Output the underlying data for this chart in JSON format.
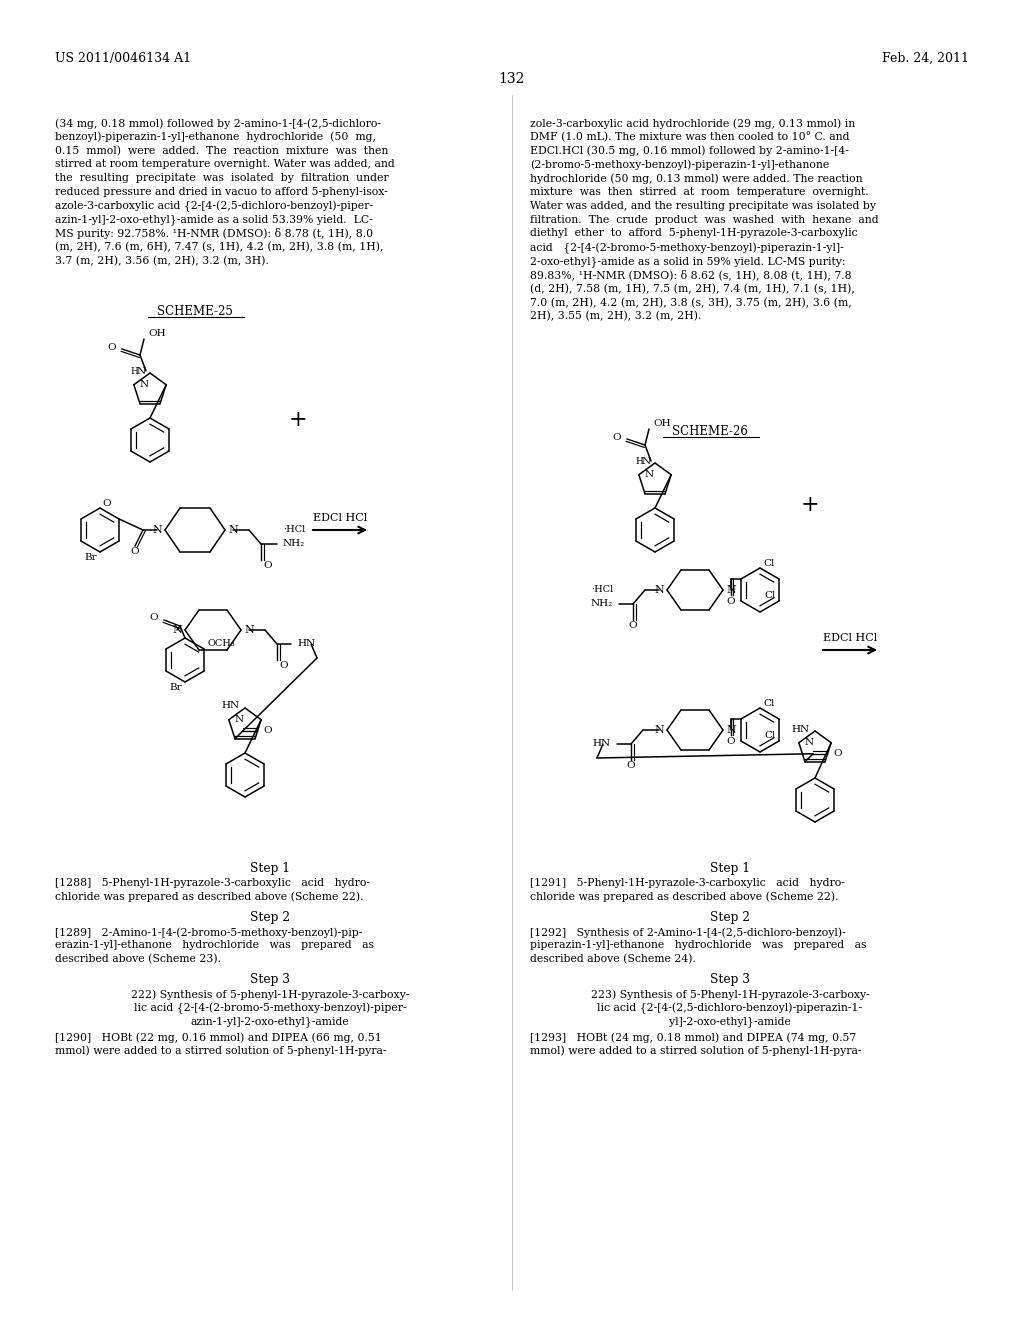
{
  "page_number": "132",
  "patent_number": "US 2011/0046134 A1",
  "patent_date": "Feb. 24, 2011",
  "background_color": "#ffffff",
  "text_color": "#000000",
  "left_col_lines": [
    "(34 mg, 0.18 mmol) followed by 2-amino-1-[4-(2,5-dichloro-",
    "benzoyl)-piperazin-1-yl]-ethanone  hydrochloride  (50  mg,",
    "0.15  mmol)  were  added.  The  reaction  mixture  was  then",
    "stirred at room temperature overnight. Water was added, and",
    "the  resulting  precipitate  was  isolated  by  filtration  under",
    "reduced pressure and dried in vacuo to afford 5-phenyl-isox-",
    "azole-3-carboxylic acid {2-[4-(2,5-dichloro-benzoyl)-piper-",
    "azin-1-yl]-2-oxo-ethyl}-amide as a solid 53.39% yield.  LC-",
    "MS purity: 92.758%. ¹H-NMR (DMSO): δ 8.78 (t, 1H), 8.0",
    "(m, 2H), 7.6 (m, 6H), 7.47 (s, 1H), 4.2 (m, 2H), 3.8 (m, 1H),",
    "3.7 (m, 2H), 3.56 (m, 2H), 3.2 (m, 3H)."
  ],
  "right_col_lines": [
    "zole-3-carboxylic acid hydrochloride (29 mg, 0.13 mmol) in",
    "DMF (1.0 mL). The mixture was then cooled to 10° C. and",
    "EDCl.HCl (30.5 mg, 0.16 mmol) followed by 2-amino-1-[4-",
    "(2-bromo-5-methoxy-benzoyl)-piperazin-1-yl]-ethanone",
    "hydrochloride (50 mg, 0.13 mmol) were added. The reaction",
    "mixture  was  then  stirred  at  room  temperature  overnight.",
    "Water was added, and the resulting precipitate was isolated by",
    "filtration.  The  crude  product  was  washed  with  hexane  and",
    "diethyl  ether  to  afford  5-phenyl-1H-pyrazole-3-carboxylic",
    "acid   {2-[4-(2-bromo-5-methoxy-benzoyl)-piperazin-1-yl]-",
    "2-oxo-ethyl}-amide as a solid in 59% yield. LC-MS purity:",
    "89.83%, ¹H-NMR (DMSO): δ 8.62 (s, 1H), 8.08 (t, 1H), 7.8",
    "(d, 2H), 7.58 (m, 1H), 7.5 (m, 2H), 7.4 (m, 1H), 7.1 (s, 1H),",
    "7.0 (m, 2H), 4.2 (m, 2H), 3.8 (s, 3H), 3.75 (m, 2H), 3.6 (m,",
    "2H), 3.55 (m, 2H), 3.2 (m, 2H)."
  ],
  "scheme25_label": "SCHEME-25",
  "scheme26_label": "SCHEME-26",
  "edci_label": "EDCl HCl",
  "step1": "Step 1",
  "step2": "Step 2",
  "step3": "Step 3",
  "p1288_line1": "[1288]   5-Phenyl-1H-pyrazole-3-carboxylic   acid   hydro-",
  "p1288_line2": "chloride was prepared as described above (Scheme 22).",
  "p1289_line1": "[1289]   2-Amino-1-[4-(2-bromo-5-methoxy-benzoyl)-pip-",
  "p1289_line2": "erazin-1-yl]-ethanone   hydrochloride   was   prepared   as",
  "p1289_line3": "described above (Scheme 23).",
  "p222_line1": "222) Synthesis of 5-phenyl-1H-pyrazole-3-carboxy-",
  "p222_line2": "lic acid {2-[4-(2-bromo-5-methoxy-benzoyl)-piper-",
  "p222_line3": "azin-1-yl]-2-oxo-ethyl}-amide",
  "p1290_line1": "[1290]   HOBt (22 mg, 0.16 mmol) and DIPEA (66 mg, 0.51",
  "p1290_line2": "mmol) were added to a stirred solution of 5-phenyl-1H-pyra-",
  "p1291_line1": "[1291]   5-Phenyl-1H-pyrazole-3-carboxylic   acid   hydro-",
  "p1291_line2": "chloride was prepared as described above (Scheme 22).",
  "p1292_line1": "[1292]   Synthesis of 2-Amino-1-[4-(2,5-dichloro-benzoyl)-",
  "p1292_line2": "piperazin-1-yl]-ethanone   hydrochloride   was   prepared   as",
  "p1292_line3": "described above (Scheme 24).",
  "p223_line1": "223) Synthesis of 5-Phenyl-1H-pyrazole-3-carboxy-",
  "p223_line2": "lic acid {2-[4-(2,5-dichloro-benzoyl)-piperazin-1-",
  "p223_line3": "yl]-2-oxo-ethyl}-amide",
  "p1293_line1": "[1293]   HOBt (24 mg, 0.18 mmol) and DIPEA (74 mg, 0.57",
  "p1293_line2": "mmol) were added to a stirred solution of 5-phenyl-1H-pyra-"
}
